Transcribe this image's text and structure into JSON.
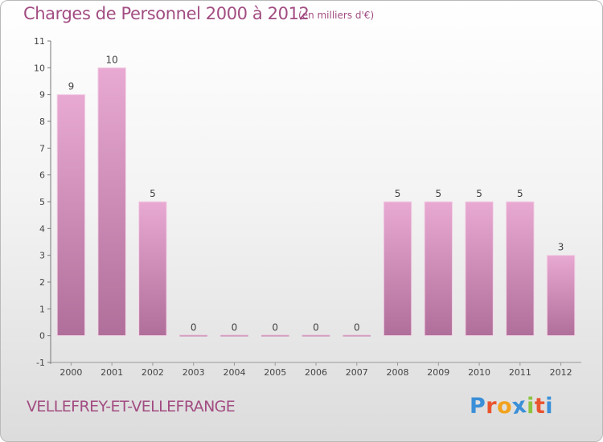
{
  "header": {
    "title": "Charges de Personnel 2000 à 2012",
    "subtitle": "(en milliers d'€)"
  },
  "footer": {
    "commune": "VELLEFREY-ET-VELLEFRANGE",
    "logo_letters": [
      "P",
      "r",
      "o",
      "x",
      "i",
      "t",
      "i"
    ],
    "logo_colors": [
      "#3a8fd8",
      "#e9542f",
      "#f2a21c",
      "#3a8fd8",
      "#8bc43f",
      "#e9542f",
      "#3a8fd8"
    ]
  },
  "chart_data": {
    "type": "bar",
    "title": "Charges de Personnel 2000 à 2012",
    "subtitle": "(en milliers d'€)",
    "categories": [
      "2000",
      "2001",
      "2002",
      "2003",
      "2004",
      "2005",
      "2006",
      "2007",
      "2008",
      "2009",
      "2010",
      "2011",
      "2012"
    ],
    "values": [
      9,
      10,
      5,
      0,
      0,
      0,
      0,
      0,
      5,
      5,
      5,
      5,
      3
    ],
    "data_labels": [
      "9",
      "10",
      "5",
      "0",
      "0",
      "0",
      "0",
      "0",
      "5",
      "5",
      "5",
      "5",
      "3"
    ],
    "y_ticks": [
      "-1",
      "0",
      "1",
      "2",
      "3",
      "4",
      "5",
      "6",
      "7",
      "8",
      "9",
      "10",
      "11"
    ],
    "ylim": [
      -1,
      11
    ],
    "grid": false,
    "bar_color": "#d9a0c4"
  }
}
